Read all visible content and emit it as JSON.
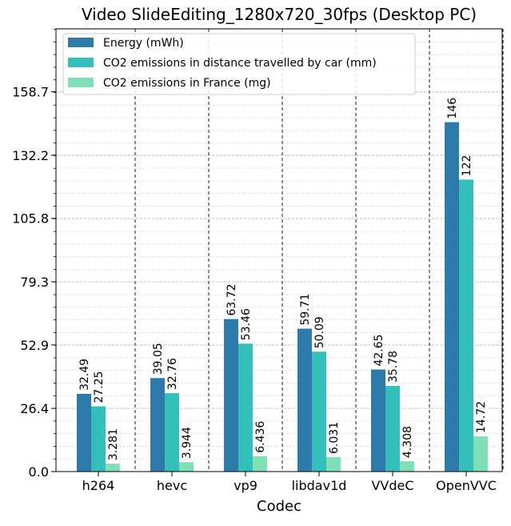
{
  "chart_data": {
    "type": "bar",
    "title": "Video SlideEditing_1280x720_30fps (Desktop PC)",
    "xlabel": "Codec",
    "ylabel": "",
    "categories": [
      "h264",
      "hevc",
      "vp9",
      "libdav1d",
      "VVdeC",
      "OpenVVC"
    ],
    "series": [
      {
        "name": "Energy (mWh)",
        "color": "#2c7bab",
        "values": [
          32.49,
          39.05,
          63.72,
          59.71,
          42.65,
          146
        ],
        "labels": [
          "32.49",
          "39.05",
          "63.72",
          "59.71",
          "42.65",
          "146"
        ]
      },
      {
        "name": "CO2 emissions in distance travelled by car (mm)",
        "color": "#33bfba",
        "values": [
          27.25,
          32.76,
          53.46,
          50.09,
          35.78,
          122
        ],
        "labels": [
          "27.25",
          "32.76",
          "53.46",
          "50.09",
          "35.78",
          "122"
        ]
      },
      {
        "name": "CO2 emissions in France (mg)",
        "color": "#7fdfb5",
        "values": [
          3.281,
          3.944,
          6.436,
          6.031,
          4.308,
          14.72
        ],
        "labels": [
          "3.281",
          "3.944",
          "6.436",
          "6.031",
          "4.308",
          "14.72"
        ]
      }
    ],
    "yticks": [
      0.0,
      26.4,
      52.9,
      79.3,
      105.8,
      132.2,
      158.7
    ],
    "ytick_labels": [
      "0.0",
      "26.4",
      "52.9",
      "79.3",
      "105.8",
      "132.2",
      "158.7"
    ],
    "ylim": [
      0,
      185
    ],
    "grid": true,
    "legend_position": "top-left"
  }
}
